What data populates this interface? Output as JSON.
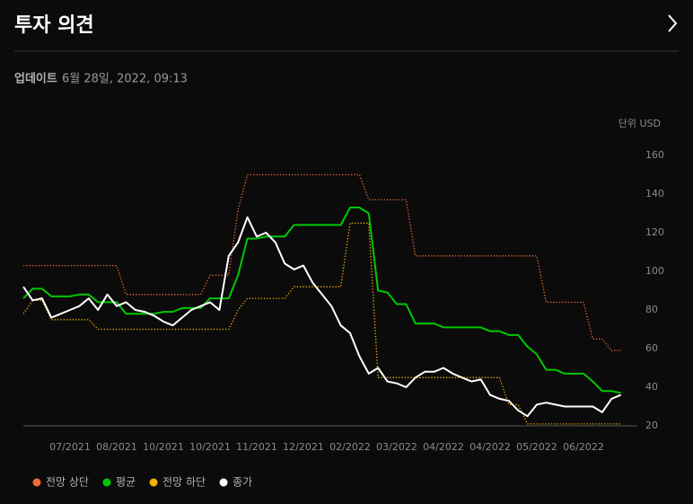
{
  "header": {
    "title": "투자 의견",
    "update_label": "업데이트",
    "update_time": "6월 28일, 2022, 09:13"
  },
  "chart_data": {
    "type": "line",
    "unit_label": "단위 USD",
    "categories": [
      null,
      null,
      null,
      null,
      null,
      "07/2021",
      null,
      null,
      null,
      null,
      "08/2021",
      null,
      null,
      null,
      null,
      "10/2021",
      null,
      null,
      null,
      null,
      "10/2021",
      null,
      null,
      null,
      null,
      "11/2021",
      null,
      null,
      null,
      null,
      "12/2021",
      null,
      null,
      null,
      null,
      "02/2022",
      null,
      null,
      null,
      null,
      "03/2022",
      null,
      null,
      null,
      null,
      "04/2022",
      null,
      null,
      null,
      null,
      "04/2022",
      null,
      null,
      null,
      null,
      "05/2022",
      null,
      null,
      null,
      null,
      "06/2022",
      null,
      null,
      null,
      null
    ],
    "ylim": [
      20,
      160
    ],
    "yticks": [
      20,
      40,
      60,
      80,
      100,
      120,
      140,
      160
    ],
    "grid": false,
    "legend": "bottom-left",
    "series": [
      {
        "name": "전망 상단",
        "color": "#f26b3a",
        "line_style": "dotted",
        "values": [
          103,
          103,
          103,
          103,
          103,
          103,
          103,
          103,
          103,
          103,
          103,
          88,
          88,
          88,
          88,
          88,
          88,
          88,
          88,
          88,
          98,
          98,
          98,
          132,
          150,
          150,
          150,
          150,
          150,
          150,
          150,
          150,
          150,
          150,
          150,
          150,
          150,
          137,
          137,
          137,
          137,
          137,
          108,
          108,
          108,
          108,
          108,
          108,
          108,
          108,
          108,
          108,
          108,
          108,
          108,
          108,
          84,
          84,
          84,
          84,
          84,
          65,
          65,
          59,
          59
        ]
      },
      {
        "name": "평균",
        "color": "#00c800",
        "line_style": "solid",
        "values": [
          86,
          91,
          91,
          87,
          87,
          87,
          88,
          88,
          84,
          84,
          84,
          78,
          78,
          78,
          78,
          79,
          79,
          81,
          81,
          81,
          86,
          86,
          86,
          98,
          117,
          117,
          118,
          118,
          118,
          124,
          124,
          124,
          124,
          124,
          124,
          133,
          133,
          130,
          90,
          89,
          83,
          83,
          73,
          73,
          73,
          71,
          71,
          71,
          71,
          71,
          69,
          69,
          67,
          67,
          61,
          57,
          49,
          49,
          47,
          47,
          47,
          43,
          38,
          38,
          37
        ]
      },
      {
        "name": "전망 하단",
        "color": "#f0b400",
        "line_style": "dotted",
        "values": [
          78,
          85,
          85,
          75,
          75,
          75,
          75,
          75,
          70,
          70,
          70,
          70,
          70,
          70,
          70,
          70,
          70,
          70,
          70,
          70,
          70,
          70,
          70,
          80,
          86,
          86,
          86,
          86,
          86,
          92,
          92,
          92,
          92,
          92,
          92,
          125,
          125,
          125,
          45,
          45,
          45,
          45,
          45,
          45,
          45,
          45,
          45,
          45,
          45,
          45,
          45,
          45,
          31,
          31,
          21,
          21,
          21,
          21,
          21,
          21,
          21,
          21,
          21,
          21,
          21
        ]
      },
      {
        "name": "종가",
        "color": "#ffffff",
        "line_style": "solid",
        "values": [
          92,
          85,
          86,
          76,
          78,
          80,
          82,
          86,
          80,
          88,
          82,
          84,
          80,
          79,
          77,
          74,
          72,
          76,
          80,
          82,
          84,
          80,
          108,
          115,
          128,
          118,
          120,
          115,
          104,
          101,
          103,
          94,
          88,
          82,
          72,
          68,
          56,
          47,
          50,
          43,
          42,
          40,
          45,
          48,
          48,
          50,
          47,
          45,
          43,
          44,
          36,
          34,
          33,
          28,
          25,
          31,
          32,
          31,
          30,
          30,
          30,
          30,
          27,
          34,
          36
        ]
      }
    ]
  }
}
